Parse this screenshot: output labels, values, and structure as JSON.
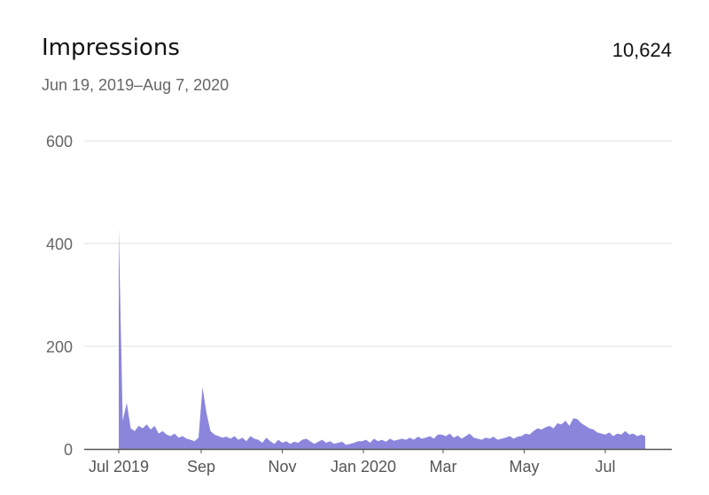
{
  "header": {
    "title": "Impressions",
    "date_range": "Jun 19, 2019–Aug 7, 2020",
    "total": "10,624"
  },
  "colors": {
    "area": "#8b86dc",
    "grid": "#e2e2e2",
    "axis": "#555555"
  },
  "chart_data": {
    "type": "area",
    "title": "Impressions",
    "xlabel": "",
    "ylabel": "",
    "ylim": [
      0,
      600
    ],
    "yticks": [
      0,
      200,
      400,
      600
    ],
    "ytick_labels": [
      "0",
      "200",
      "400",
      "600"
    ],
    "xticks": [
      {
        "label": "Jul 2019",
        "day": 0
      },
      {
        "label": "Sep",
        "day": 62
      },
      {
        "label": "Nov",
        "day": 123
      },
      {
        "label": "Jan 2020",
        "day": 184
      },
      {
        "label": "Mar",
        "day": 244
      },
      {
        "label": "May",
        "day": 305
      },
      {
        "label": "Jul",
        "day": 366
      }
    ],
    "x_domain_days_from_jul_1_2019": [
      -26,
      416
    ],
    "grid": true,
    "series": [
      {
        "name": "Impressions",
        "start": "Jul 1, 2019",
        "interval_days": 3,
        "values": [
          430,
          55,
          90,
          40,
          35,
          45,
          40,
          48,
          38,
          45,
          30,
          35,
          28,
          25,
          30,
          22,
          25,
          20,
          18,
          15,
          22,
          120,
          70,
          35,
          28,
          25,
          22,
          24,
          20,
          25,
          18,
          22,
          15,
          25,
          20,
          18,
          12,
          22,
          15,
          10,
          18,
          12,
          15,
          10,
          14,
          12,
          18,
          20,
          15,
          10,
          14,
          18,
          12,
          15,
          10,
          12,
          14,
          8,
          10,
          12,
          15,
          15,
          18,
          12,
          20,
          15,
          18,
          14,
          20,
          16,
          18,
          20,
          18,
          22,
          18,
          24,
          20,
          22,
          25,
          20,
          28,
          28,
          25,
          30,
          22,
          26,
          20,
          25,
          30,
          22,
          20,
          18,
          22,
          20,
          24,
          18,
          20,
          22,
          25,
          20,
          24,
          25,
          30,
          28,
          35,
          40,
          38,
          42,
          45,
          40,
          50,
          48,
          55,
          45,
          60,
          58,
          50,
          45,
          40,
          38,
          32,
          30,
          28,
          32,
          25,
          30,
          28,
          35,
          28,
          30,
          25,
          28,
          25
        ]
      }
    ]
  }
}
